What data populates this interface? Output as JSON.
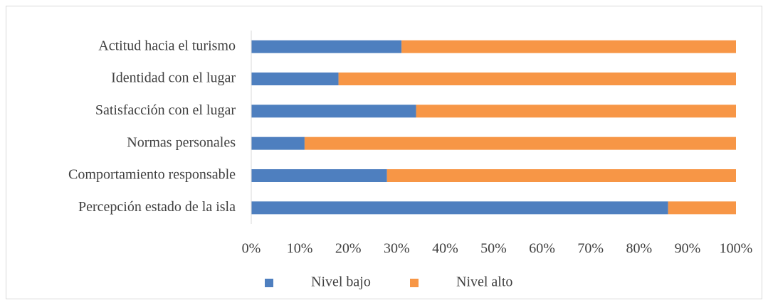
{
  "chart_data": {
    "type": "stacked_barh",
    "categories": [
      "Actitud hacia el turismo",
      "Identidad con el lugar",
      "Satisfacción con el lugar",
      "Normas personales",
      "Comportamiento responsable",
      "Percepción estado de la isla"
    ],
    "series": [
      {
        "name": "Nivel bajo",
        "color": "#4e7fbf",
        "values": [
          31,
          18,
          34,
          11,
          28,
          86
        ]
      },
      {
        "name": "Nivel alto",
        "color": "#f79646",
        "values": [
          69,
          82,
          66,
          89,
          72,
          14
        ]
      }
    ],
    "xlim": [
      0,
      100
    ],
    "xticks": [
      {
        "value": 0,
        "label": "0%"
      },
      {
        "value": 10,
        "label": "10%"
      },
      {
        "value": 20,
        "label": "20%"
      },
      {
        "value": 30,
        "label": "30%"
      },
      {
        "value": 40,
        "label": "40%"
      },
      {
        "value": 50,
        "label": "50%"
      },
      {
        "value": 60,
        "label": "60%"
      },
      {
        "value": 70,
        "label": "70%"
      },
      {
        "value": 80,
        "label": "80%"
      },
      {
        "value": 90,
        "label": "90%"
      },
      {
        "value": 100,
        "label": "100%"
      }
    ],
    "grid": false,
    "legend": "bottom"
  }
}
